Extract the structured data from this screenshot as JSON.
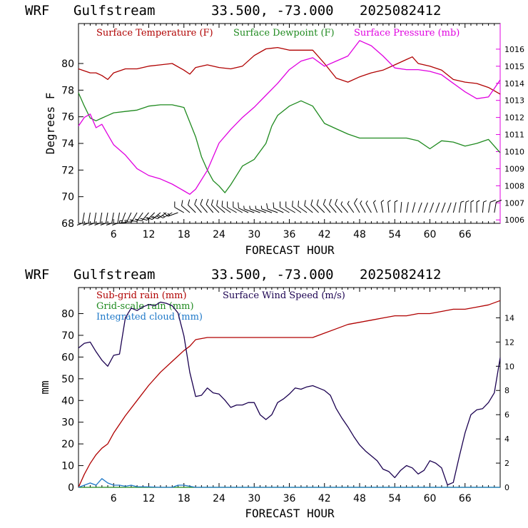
{
  "header": {
    "model": "WRF",
    "site": "Gulfstream",
    "coords": "33.500, -73.000",
    "cycle": "2025082412"
  },
  "colors": {
    "temperature": "#b00000",
    "dewpoint": "#1f8a1f",
    "pressure": "#e000e0",
    "subgrid_rain": "#b00000",
    "grid_rain": "#1f8a1f",
    "cloud": "#1e78c8",
    "wind_speed": "#1a0050",
    "axis": "#000000"
  },
  "chart_data": [
    {
      "type": "line",
      "title": "",
      "xlabel": "FORECAST HOUR",
      "ylabel": "Degrees F",
      "xlim": [
        0,
        72
      ],
      "ylim": [
        68,
        83
      ],
      "x_ticks": [
        "6",
        "12",
        "18",
        "24",
        "30",
        "36",
        "42",
        "48",
        "54",
        "60",
        "66"
      ],
      "y_ticks": [
        "68",
        "70",
        "72",
        "74",
        "76",
        "78",
        "80"
      ],
      "y2lim": [
        1005.8,
        1017.5
      ],
      "y2_ticks": [
        "1006",
        "1007",
        "1008",
        "1009",
        "1010",
        "1011",
        "1012",
        "1013",
        "1014",
        "1015",
        "1016"
      ],
      "legend": [
        "Surface Temperature (F)",
        "Surface Dewpoint (F)",
        "Surface Pressure (mb)"
      ],
      "series": [
        {
          "name": "Surface Temperature (F)",
          "axis": "left",
          "x": [
            0,
            2,
            3,
            4,
            5,
            6,
            8,
            10,
            12,
            14,
            16,
            18,
            19,
            20,
            22,
            24,
            26,
            28,
            30,
            32,
            34,
            36,
            38,
            40,
            42,
            44,
            46,
            48,
            50,
            52,
            54,
            56,
            57,
            58,
            60,
            62,
            64,
            66,
            68,
            70,
            72
          ],
          "y": [
            79.6,
            79.3,
            79.3,
            79.1,
            78.8,
            79.3,
            79.6,
            79.6,
            79.8,
            79.9,
            80.0,
            79.5,
            79.2,
            79.7,
            79.9,
            79.7,
            79.6,
            79.8,
            80.6,
            81.1,
            81.2,
            81.0,
            81.0,
            81.0,
            80.0,
            78.9,
            78.6,
            79.0,
            79.3,
            79.5,
            79.9,
            80.3,
            80.5,
            80.0,
            79.8,
            79.5,
            78.8,
            78.6,
            78.5,
            78.2,
            77.7
          ]
        },
        {
          "name": "Surface Dewpoint (F)",
          "axis": "left",
          "x": [
            0,
            1,
            2,
            3,
            4,
            5,
            6,
            8,
            10,
            12,
            14,
            16,
            18,
            20,
            21,
            22,
            23,
            24,
            25,
            26,
            27,
            28,
            30,
            32,
            33,
            34,
            36,
            38,
            40,
            42,
            44,
            46,
            48,
            50,
            52,
            54,
            56,
            58,
            60,
            62,
            64,
            66,
            68,
            70,
            72
          ],
          "y": [
            77.8,
            76.8,
            75.9,
            75.7,
            75.9,
            76.1,
            76.3,
            76.4,
            76.5,
            76.8,
            76.9,
            76.9,
            76.7,
            74.5,
            73.0,
            72.0,
            71.2,
            70.8,
            70.3,
            70.9,
            71.6,
            72.3,
            72.8,
            74.0,
            75.3,
            76.1,
            76.8,
            77.2,
            76.8,
            75.5,
            75.1,
            74.7,
            74.4,
            74.4,
            74.4,
            74.4,
            74.4,
            74.2,
            73.6,
            74.2,
            74.1,
            73.8,
            74.0,
            74.3,
            73.3
          ]
        },
        {
          "name": "Surface Pressure (mb)",
          "axis": "right",
          "x": [
            0,
            1,
            2,
            3,
            4,
            5,
            6,
            8,
            10,
            12,
            14,
            16,
            18,
            19,
            20,
            22,
            24,
            26,
            28,
            30,
            32,
            34,
            36,
            38,
            40,
            42,
            44,
            46,
            48,
            50,
            52,
            54,
            56,
            58,
            60,
            62,
            64,
            66,
            68,
            70,
            72
          ],
          "y": [
            1011.5,
            1012.0,
            1012.2,
            1011.4,
            1011.6,
            1011.0,
            1010.4,
            1009.8,
            1009.0,
            1008.6,
            1008.4,
            1008.1,
            1007.7,
            1007.5,
            1007.8,
            1008.9,
            1010.5,
            1011.3,
            1012.0,
            1012.6,
            1013.3,
            1014.0,
            1014.8,
            1015.3,
            1015.5,
            1015.0,
            1015.3,
            1015.6,
            1016.5,
            1016.2,
            1015.6,
            1014.9,
            1014.8,
            1014.8,
            1014.7,
            1014.5,
            1014.0,
            1013.5,
            1013.1,
            1013.2,
            1014.2
          ]
        }
      ],
      "wind_barbs": {
        "x": [
          1,
          2,
          3,
          4,
          5,
          6,
          7,
          8,
          9,
          10,
          11,
          12,
          13,
          14,
          15,
          16,
          17,
          18,
          19,
          20,
          21,
          22,
          23,
          24,
          25,
          26,
          27,
          28,
          29,
          30,
          31,
          32,
          33,
          34,
          35,
          36,
          37,
          38,
          39,
          40,
          41,
          42,
          43,
          44,
          45,
          46,
          47,
          48,
          49,
          50,
          51,
          52,
          53,
          54,
          55,
          56,
          57,
          58,
          59,
          60,
          61,
          62,
          63,
          64,
          65,
          66,
          67,
          68,
          69,
          70,
          71
        ],
        "speed": [
          12,
          12,
          12,
          12,
          11,
          11,
          11,
          14,
          15,
          16,
          17,
          17,
          17,
          17,
          17,
          16,
          15,
          10,
          9,
          9,
          9,
          9,
          8,
          8,
          8,
          9,
          8,
          8,
          8,
          6,
          6,
          6,
          7,
          8,
          8,
          8,
          8,
          9,
          9,
          9,
          9,
          9,
          8,
          8,
          8,
          7,
          7,
          8,
          7,
          6,
          6,
          5,
          4,
          3,
          2,
          2,
          1,
          2,
          2,
          2,
          2,
          2,
          1,
          1,
          3,
          4,
          5,
          6,
          7,
          8,
          10
        ],
        "dir": [
          190,
          190,
          190,
          190,
          190,
          190,
          190,
          200,
          205,
          210,
          215,
          220,
          225,
          230,
          235,
          240,
          250,
          300,
          310,
          315,
          320,
          320,
          320,
          315,
          310,
          305,
          300,
          300,
          295,
          290,
          290,
          290,
          290,
          290,
          295,
          300,
          300,
          305,
          305,
          310,
          315,
          315,
          320,
          320,
          320,
          320,
          325,
          330,
          330,
          330,
          340,
          350,
          355,
          0,
          5,
          10,
          15,
          20,
          20,
          20,
          20,
          20,
          20,
          15,
          10,
          5,
          0,
          0,
          5,
          10,
          10
        ]
      }
    },
    {
      "type": "line",
      "title": "",
      "xlabel": "FORECAST HOUR",
      "ylabel": "mm",
      "xlim": [
        0,
        72
      ],
      "ylim": [
        0,
        92
      ],
      "x_ticks": [
        "6",
        "12",
        "18",
        "24",
        "30",
        "36",
        "42",
        "48",
        "54",
        "60",
        "66"
      ],
      "y_ticks": [
        "0",
        "10",
        "20",
        "30",
        "40",
        "50",
        "60",
        "70",
        "80"
      ],
      "y2lim": [
        0,
        16.5
      ],
      "y2_ticks": [
        "0",
        "2",
        "4",
        "6",
        "8",
        "10",
        "12",
        "14"
      ],
      "legend": [
        "Sub-grid rain (mm)",
        "Grid-scale rain (mm)",
        "Integrated cloud (mm)",
        "Surface Wind Speed (m/s)"
      ],
      "series": [
        {
          "name": "Sub-grid rain (mm)",
          "axis": "left",
          "x": [
            0,
            1,
            2,
            3,
            4,
            5,
            6,
            8,
            10,
            12,
            14,
            16,
            18,
            19,
            20,
            22,
            24,
            26,
            28,
            30,
            32,
            34,
            36,
            38,
            40,
            42,
            44,
            46,
            48,
            50,
            52,
            54,
            56,
            58,
            60,
            62,
            64,
            66,
            68,
            70,
            72
          ],
          "y": [
            0,
            6,
            11,
            15,
            18,
            20,
            25,
            33,
            40,
            47,
            53,
            58,
            63,
            65,
            68,
            69,
            69,
            69,
            69,
            69,
            69,
            69,
            69,
            69,
            69,
            71,
            73,
            75,
            76,
            77,
            78,
            79,
            79,
            80,
            80,
            81,
            82,
            82,
            83,
            84,
            86
          ]
        },
        {
          "name": "Grid-scale rain (mm)",
          "axis": "left",
          "x": [
            0,
            72
          ],
          "y": [
            0,
            0
          ]
        },
        {
          "name": "Integrated cloud (mm)",
          "axis": "left",
          "x": [
            0,
            1,
            2,
            3,
            4,
            5,
            6,
            7,
            8,
            9,
            10,
            12,
            14,
            16,
            17,
            18,
            19,
            20,
            22,
            24,
            26,
            28,
            30,
            72
          ],
          "y": [
            0,
            1,
            2,
            1,
            4,
            2,
            1,
            1,
            0.5,
            1,
            0.3,
            0.2,
            0,
            0,
            1,
            1,
            0.5,
            0,
            0,
            0,
            0,
            0,
            0,
            0
          ]
        },
        {
          "name": "Surface Wind Speed (m/s)",
          "axis": "right",
          "x": [
            0,
            1,
            2,
            3,
            4,
            5,
            6,
            7,
            8,
            9,
            10,
            11,
            12,
            13,
            14,
            15,
            16,
            17,
            18,
            19,
            20,
            21,
            22,
            23,
            24,
            25,
            26,
            27,
            28,
            29,
            30,
            31,
            32,
            33,
            34,
            35,
            36,
            37,
            38,
            39,
            40,
            41,
            42,
            43,
            44,
            45,
            46,
            47,
            48,
            49,
            50,
            51,
            52,
            53,
            54,
            55,
            56,
            57,
            58,
            59,
            60,
            61,
            62,
            63,
            64,
            65,
            66,
            67,
            68,
            69,
            70,
            71,
            72
          ],
          "y": [
            11.5,
            11.9,
            12.0,
            11.2,
            10.5,
            10.0,
            10.9,
            11.0,
            14.0,
            14.8,
            14.6,
            14.9,
            15.1,
            15.0,
            15.3,
            15.2,
            15.0,
            14.4,
            12.5,
            9.5,
            7.5,
            7.6,
            8.2,
            7.8,
            7.7,
            7.2,
            6.6,
            6.8,
            6.8,
            7.0,
            7.0,
            6.0,
            5.6,
            6.0,
            7.0,
            7.3,
            7.7,
            8.2,
            8.1,
            8.3,
            8.4,
            8.2,
            8.0,
            7.6,
            6.5,
            5.7,
            5.0,
            4.2,
            3.5,
            3.0,
            2.6,
            2.2,
            1.5,
            1.3,
            0.8,
            1.4,
            1.8,
            1.6,
            1.1,
            1.4,
            2.2,
            2.0,
            1.6,
            0.2,
            0.4,
            2.5,
            4.5,
            6.0,
            6.4,
            6.5,
            7.0,
            7.8,
            10.7
          ]
        }
      ]
    }
  ]
}
